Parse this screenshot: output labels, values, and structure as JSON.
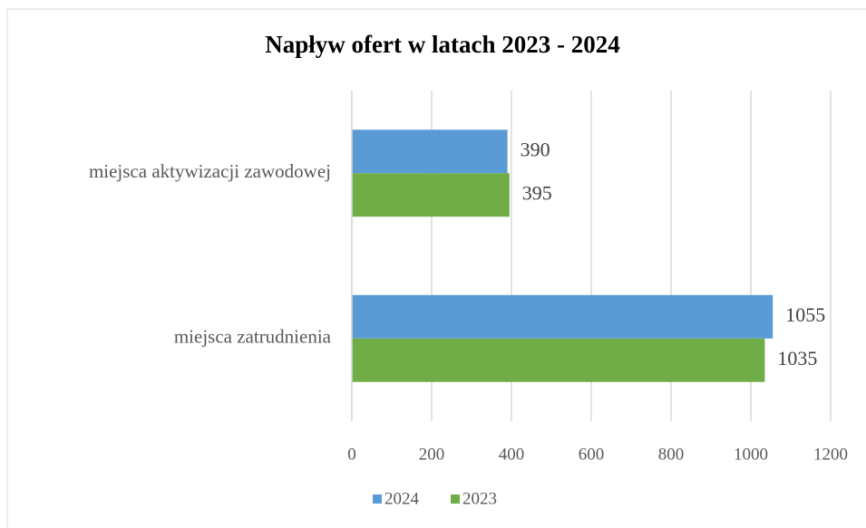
{
  "chart_data": {
    "type": "bar",
    "orientation": "horizontal",
    "title": "Napływ ofert w latach 2023 - 2024",
    "categories": [
      "miejsca aktywizacji zawodowej",
      "miejsca zatrudnienia"
    ],
    "series": [
      {
        "name": "2024",
        "color": "#5b9bd5",
        "values": [
          390,
          1055
        ]
      },
      {
        "name": "2023",
        "color": "#70ad47",
        "values": [
          395,
          1035
        ]
      }
    ],
    "xlim": [
      0,
      1200
    ],
    "xticks": [
      0,
      200,
      400,
      600,
      800,
      1000,
      1200
    ],
    "grid": true,
    "legend": "bottom"
  }
}
